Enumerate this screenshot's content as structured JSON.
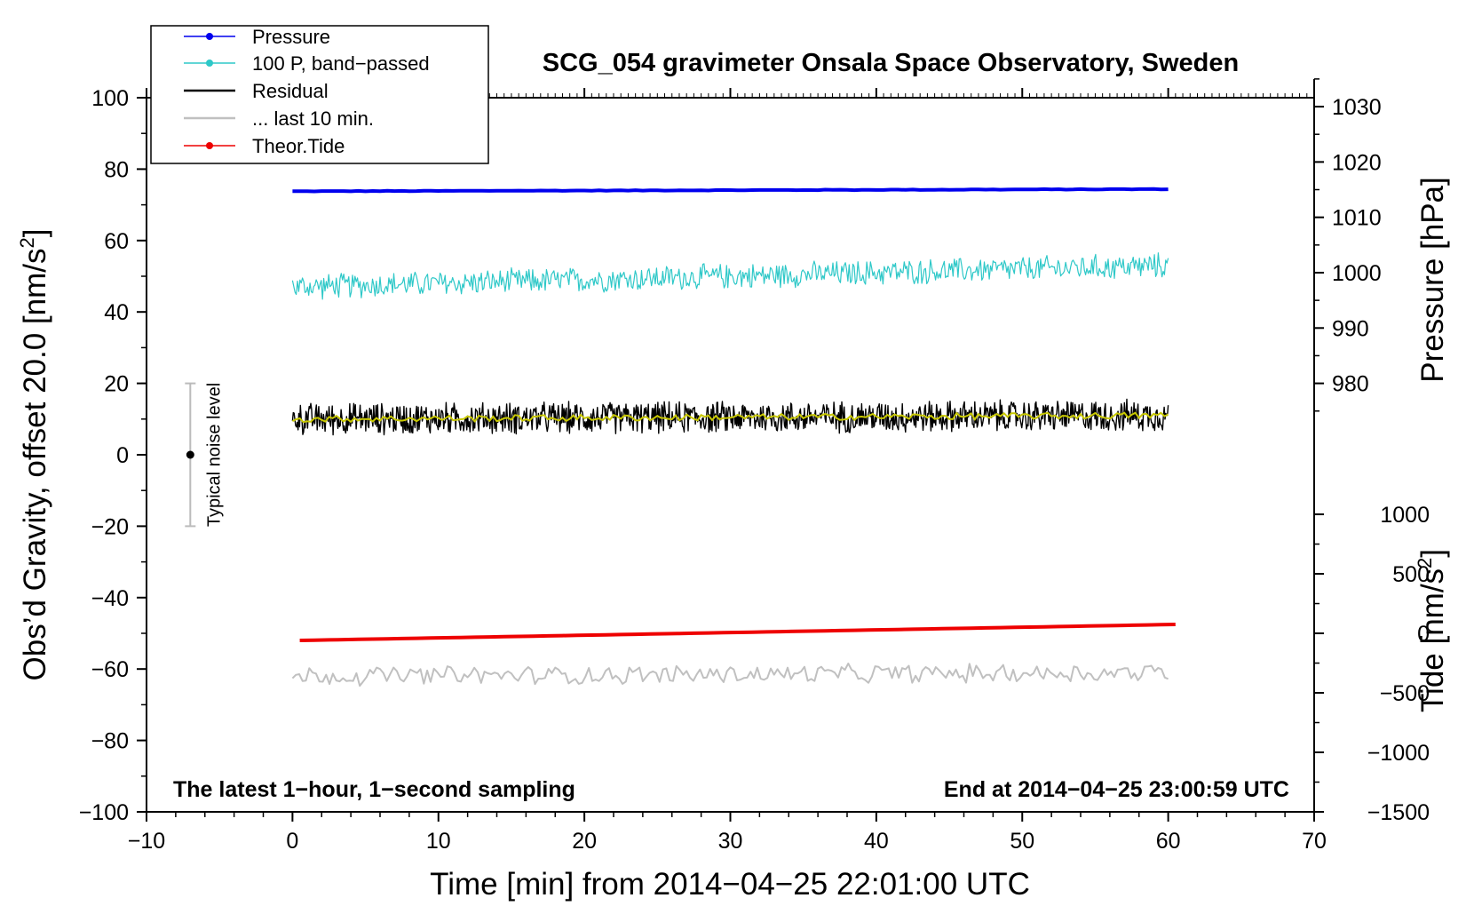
{
  "chart_data": {
    "type": "line",
    "title": "SCG_054 gravimeter Onsala Space Observatory, Sweden",
    "xlabel": "Time [min] from 2014−04−25 22:01:00 UTC",
    "ylabel_left_main": "Obs’d Gravity, offset 20.0 [nm/s",
    "ylabel_left_sup": "2",
    "ylabel_left_close": "]",
    "ylabel_right_pressure": "Pressure [hPa]",
    "ylabel_right_tide_main": "Tide [nm/s",
    "ylabel_right_tide_sup": "2",
    "ylabel_right_tide_close": "]",
    "xlim": [
      -10,
      70
    ],
    "ylim": [
      -100,
      100
    ],
    "x_ticks": [
      -10,
      0,
      10,
      20,
      30,
      40,
      50,
      60,
      70
    ],
    "x_tick_labels": [
      "−10",
      "0",
      "10",
      "20",
      "30",
      "40",
      "50",
      "60",
      "70"
    ],
    "y_ticks": [
      -100,
      -80,
      -60,
      -40,
      -20,
      0,
      20,
      40,
      60,
      80,
      100
    ],
    "y_tick_labels": [
      "−100",
      "−80",
      "−60",
      "−40",
      "−20",
      "0",
      "20",
      "40",
      "60",
      "80",
      "100"
    ],
    "pressure_axis": {
      "ticks": [
        980,
        990,
        1000,
        1010,
        1020,
        1030
      ],
      "tick_labels": [
        "980",
        "990",
        "1000",
        "1010",
        "1020",
        "1030"
      ],
      "gravity_at_980": 20,
      "gravity_per_hpa": 1.55
    },
    "tide_axis": {
      "ticks": [
        -1500,
        -1000,
        -500,
        0,
        500,
        1000
      ],
      "tick_labels": [
        "−1500",
        "−1000",
        "−500",
        "0",
        "500",
        "1000"
      ],
      "gravity_at_minus1500": -100,
      "gravity_per_unit": 0.03333
    },
    "series": [
      {
        "name": "Pressure",
        "color": "#0000ee",
        "x_start": 0,
        "x_end": 60,
        "y_start": 73.8,
        "y_end": 74.4,
        "noise": 0.1
      },
      {
        "name": "100 P, band−passed",
        "color": "#2ec8c8",
        "x_start": 0,
        "x_end": 60,
        "y_start": 47,
        "y_end": 53,
        "noise": 4
      },
      {
        "name": "Residual",
        "color": "#000000",
        "x_start": 0,
        "x_end": 60,
        "y_start": 10,
        "y_end": 11,
        "noise": 5
      },
      {
        "name": "... last 10 min.",
        "color": "#c0c0c0",
        "x_start": 0,
        "x_end": 60,
        "y_start": -62,
        "y_end": -61,
        "noise": 3
      },
      {
        "name": "Theor.Tide",
        "color": "#ee0000",
        "x_start": 0.5,
        "x_end": 60.5,
        "y_start": -52,
        "y_end": -47.5,
        "noise": 0
      }
    ],
    "smoothed_residual": {
      "color": "#c8c800",
      "y_start": 10,
      "y_end": 11
    },
    "noise_bar": {
      "label": "Typical noise level",
      "x": -7,
      "center": 0,
      "low": -20,
      "high": 20
    },
    "annotation_left": "The latest 1−hour, 1−second sampling",
    "annotation_right": "End at 2014−04−25 23:00:59 UTC",
    "legend_position": "top-left"
  }
}
